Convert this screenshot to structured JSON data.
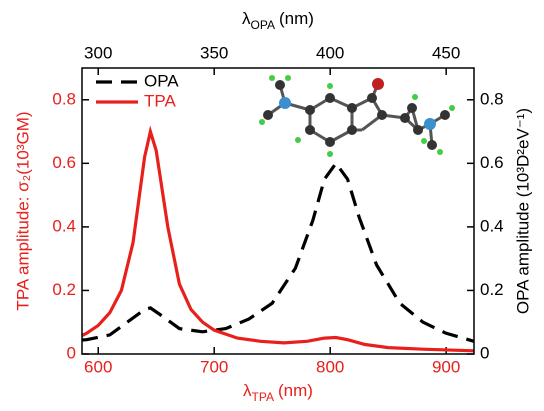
{
  "chart_data": {
    "type": "line",
    "x_label": {
      "symbol": "λ",
      "subscript": "TPA",
      "unit": "(nm)"
    },
    "x2_label": {
      "symbol": "λ",
      "subscript": "OPA",
      "unit": "(nm)"
    },
    "y_label": "TPA amplitude: σ₂(10³GM)",
    "y2_label": "OPA amplitude (10³D²eV⁻¹)",
    "xlim": [
      586,
      924
    ],
    "xticks": [
      600,
      700,
      800,
      900
    ],
    "x2lim": [
      293,
      462
    ],
    "x2ticks": [
      300,
      350,
      400,
      450
    ],
    "ylim": [
      0,
      0.9
    ],
    "yticks": [
      0,
      0.2,
      0.4,
      0.6,
      0.8
    ],
    "y2lim": [
      0,
      0.9
    ],
    "y2ticks": [
      0,
      0.2,
      0.4,
      0.6,
      0.8
    ],
    "legend": "upper left",
    "series": [
      {
        "name": "OPA",
        "color": "#000000",
        "dash": true,
        "axis": "y2",
        "x": [
          586,
          590,
          610,
          625,
          640,
          645,
          655,
          670,
          690,
          710,
          730,
          750,
          770,
          785,
          795,
          805,
          815,
          825,
          840,
          860,
          880,
          900,
          924
        ],
        "values": [
          0.044,
          0.045,
          0.06,
          0.1,
          0.14,
          0.145,
          0.12,
          0.08,
          0.07,
          0.08,
          0.11,
          0.16,
          0.27,
          0.42,
          0.55,
          0.6,
          0.55,
          0.43,
          0.28,
          0.16,
          0.1,
          0.065,
          0.04
        ]
      },
      {
        "name": "TPA",
        "color": "#e8201c",
        "dash": false,
        "x": [
          586,
          590,
          600,
          610,
          620,
          630,
          640,
          645,
          650,
          660,
          670,
          680,
          690,
          700,
          720,
          740,
          760,
          780,
          795,
          805,
          815,
          830,
          850,
          880,
          924
        ],
        "values": [
          0.058,
          0.065,
          0.09,
          0.13,
          0.2,
          0.35,
          0.62,
          0.7,
          0.64,
          0.4,
          0.22,
          0.14,
          0.1,
          0.075,
          0.05,
          0.04,
          0.035,
          0.04,
          0.05,
          0.052,
          0.045,
          0.03,
          0.02,
          0.015,
          0.01
        ]
      }
    ]
  }
}
